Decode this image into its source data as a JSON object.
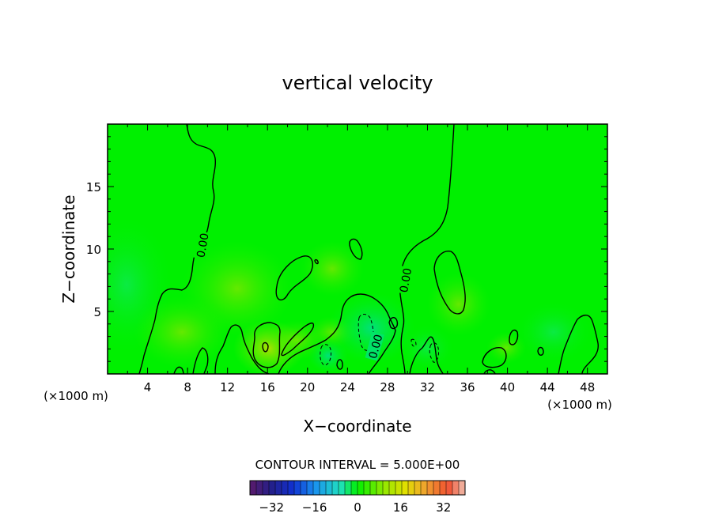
{
  "chart_data": {
    "type": "contour",
    "title": "vertical velocity",
    "xlabel": "X−coordinate",
    "ylabel": "Z−coordinate",
    "x_unit_label_left": "(×1000 m)",
    "x_unit_label_right": "(×1000 m)",
    "xlim": [
      0,
      50
    ],
    "ylim": [
      0,
      20
    ],
    "x_ticks": [
      4,
      8,
      12,
      16,
      20,
      24,
      28,
      32,
      36,
      40,
      44,
      48
    ],
    "y_ticks": [
      5,
      10,
      15
    ],
    "contour_interval_text": "CONTOUR INTERVAL = 5.000E+00",
    "contour_labels": [
      {
        "text": "0.00",
        "x": 9.5,
        "y": 10.3
      },
      {
        "text": "0.00",
        "x": 29.8,
        "y": 7.5
      },
      {
        "text": "0.00",
        "x": 26.8,
        "y": 2.2
      }
    ],
    "colorbar": {
      "range": [
        -40,
        40
      ],
      "ticks": [
        -32,
        -16,
        0,
        16,
        32
      ]
    },
    "background_color": "#00f000"
  }
}
